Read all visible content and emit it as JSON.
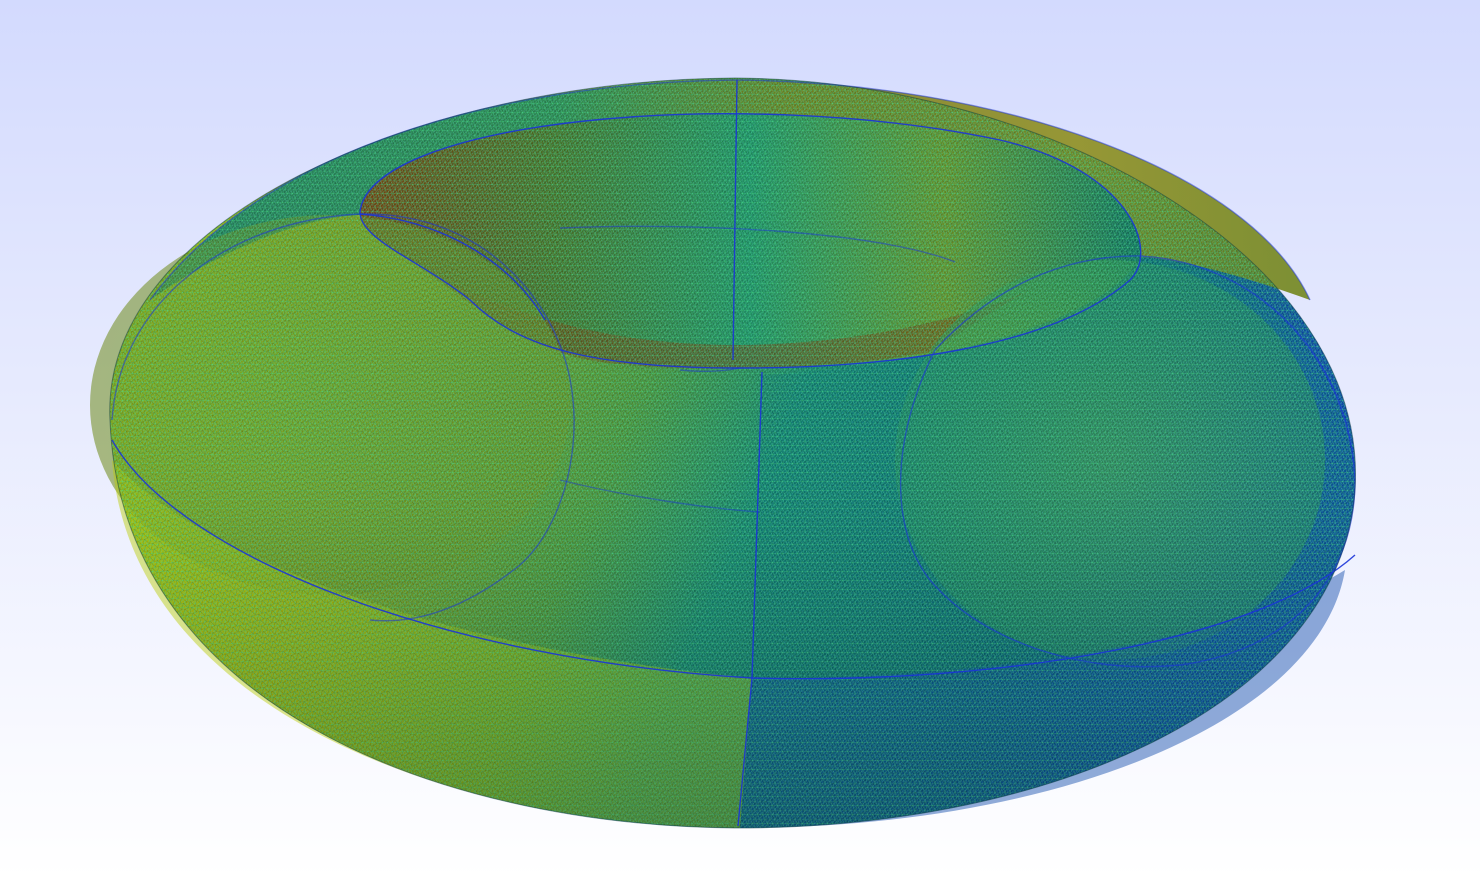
{
  "viewport": {
    "background_top": "#d3dafe",
    "background_bottom": "#ffffff"
  },
  "mesh_model": {
    "shape": "torus",
    "render_mode": "surface-with-triangle-edges",
    "colors": {
      "yellow": "#c8d800",
      "olive": "#8f8a12",
      "green": "#2f9a55",
      "teal": "#0a6f6a",
      "dark_teal": "#045a55",
      "blue": "#0b3ea8",
      "brown": "#7a3a08",
      "mesh_edge": "#3fe07a",
      "mesh_edge_cyan": "#5cd6c8",
      "feature_edge": "#1b34d8"
    }
  }
}
